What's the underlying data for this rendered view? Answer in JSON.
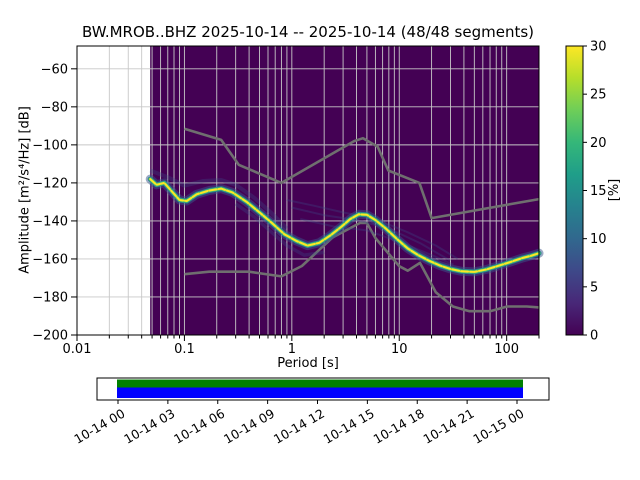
{
  "title": "BW.MROB..BHZ   2025-10-14 -- 2025-10-14  (48/48 segments)",
  "axes": {
    "ylabel": "Amplitude [m²/s⁴/Hz] [dB]",
    "xlabel": "Period [s]",
    "colorbar_label": "[%]"
  },
  "chart_data": {
    "type": "heatmap",
    "title": "BW.MROB..BHZ   2025-10-14 -- 2025-10-14  (48/48 segments)",
    "station": "BW.MROB..BHZ",
    "date_range": "2025-10-14 -- 2025-10-14",
    "segments": "48/48",
    "x_axis": {
      "label": "Period [s]",
      "scale": "log",
      "range": [
        0.01,
        200
      ],
      "ticks": [
        0.01,
        0.1,
        1,
        10,
        100
      ],
      "tick_labels": [
        "0.01",
        "0.1",
        "1",
        "10",
        "100"
      ]
    },
    "y_axis": {
      "label": "Amplitude [m²/s⁴/Hz] [dB]",
      "range": [
        -200,
        -48
      ],
      "ticks": [
        -60,
        -80,
        -100,
        -120,
        -140,
        -160,
        -180,
        -200
      ],
      "tick_labels": [
        "−60",
        "−80",
        "−100",
        "−120",
        "−140",
        "−160",
        "−180",
        "−200"
      ]
    },
    "colorbar": {
      "label": "[%]",
      "range": [
        0,
        30
      ],
      "ticks": [
        0,
        5,
        10,
        15,
        20,
        25,
        30
      ],
      "tick_labels": [
        "0",
        "5",
        "10",
        "15",
        "20",
        "25",
        "30"
      ],
      "colormap": "viridis",
      "gradient_bottom_to_top": [
        "#440154",
        "#482878",
        "#3e4989",
        "#31688e",
        "#26828e",
        "#1f9e89",
        "#35b779",
        "#6ece58",
        "#b5de2b",
        "#fde725"
      ]
    },
    "heatmap": {
      "period_start": 0.048,
      "background_color": "#440154",
      "grid_color": "#c8c8c8"
    },
    "psd_mode_curve": {
      "color": "#fde725",
      "points": [
        [
          0.048,
          -118
        ],
        [
          0.055,
          -121
        ],
        [
          0.065,
          -120
        ],
        [
          0.075,
          -124
        ],
        [
          0.09,
          -129
        ],
        [
          0.105,
          -129.5
        ],
        [
          0.13,
          -126
        ],
        [
          0.17,
          -124
        ],
        [
          0.22,
          -123
        ],
        [
          0.28,
          -125
        ],
        [
          0.38,
          -130
        ],
        [
          0.5,
          -135.5
        ],
        [
          0.65,
          -141
        ],
        [
          0.85,
          -147
        ],
        [
          1.1,
          -150.5
        ],
        [
          1.4,
          -153
        ],
        [
          1.8,
          -151.5
        ],
        [
          2.3,
          -147.5
        ],
        [
          2.9,
          -143
        ],
        [
          3.5,
          -139
        ],
        [
          4.2,
          -136.5
        ],
        [
          5.0,
          -136.8
        ],
        [
          6.0,
          -139.5
        ],
        [
          7.5,
          -144
        ],
        [
          9.5,
          -149.5
        ],
        [
          12,
          -154.5
        ],
        [
          15,
          -158
        ],
        [
          19,
          -161
        ],
        [
          24,
          -163.5
        ],
        [
          30,
          -165.3
        ],
        [
          38,
          -166.5
        ],
        [
          50,
          -166.8
        ],
        [
          65,
          -165.5
        ],
        [
          85,
          -163.5
        ],
        [
          110,
          -161.5
        ],
        [
          140,
          -159.5
        ],
        [
          170,
          -158.3
        ],
        [
          200,
          -157
        ]
      ]
    },
    "band_layers": [
      {
        "color": "#39568c",
        "width": 9,
        "opacity": 0.5,
        "dash": ""
      },
      {
        "color": "#25848e",
        "width": 5,
        "opacity": 0.95,
        "dash": ""
      },
      {
        "color": "#4ac16d",
        "width": 3.2,
        "opacity": 1,
        "dash": ""
      },
      {
        "color": "#fde725",
        "width": 2,
        "opacity": 1,
        "dash": "7 2"
      }
    ],
    "noise_models": {
      "color": "#6f6f6f",
      "nhnm": [
        [
          0.1,
          -91.5
        ],
        [
          0.22,
          -97.4
        ],
        [
          0.32,
          -110.5
        ],
        [
          0.8,
          -120.0
        ],
        [
          3.8,
          -98.0
        ],
        [
          4.6,
          -96.5
        ],
        [
          6.3,
          -101.0
        ],
        [
          7.9,
          -113.5
        ],
        [
          15.4,
          -120.0
        ],
        [
          20.0,
          -138.5
        ],
        [
          200,
          -128.5
        ]
      ],
      "nlnm": [
        [
          0.1,
          -168.0
        ],
        [
          0.17,
          -166.7
        ],
        [
          0.4,
          -166.7
        ],
        [
          0.8,
          -169.2
        ],
        [
          1.24,
          -163.7
        ],
        [
          2.4,
          -148.6
        ],
        [
          4.3,
          -141.1
        ],
        [
          5.0,
          -141.1
        ],
        [
          6.0,
          -149.0
        ],
        [
          10.0,
          -163.8
        ],
        [
          12.0,
          -166.2
        ],
        [
          15.6,
          -162.1
        ],
        [
          21.9,
          -177.5
        ],
        [
          31.6,
          -185.0
        ],
        [
          45.0,
          -187.5
        ],
        [
          70.0,
          -187.5
        ],
        [
          101.0,
          -185.0
        ],
        [
          154.0,
          -185.0
        ],
        [
          200.0,
          -185.5
        ]
      ]
    },
    "secondary_traces": {
      "color": "#3d4f8a",
      "opacity": 0.3,
      "paths": [
        {
          "width": 4,
          "points": [
            [
              0.048,
              -113.5
            ],
            [
              0.07,
              -117
            ],
            [
              0.1,
              -121.5
            ],
            [
              0.15,
              -119
            ],
            [
              0.22,
              -118.5
            ],
            [
              0.3,
              -121
            ],
            [
              0.45,
              -128
            ],
            [
              0.65,
              -136
            ],
            [
              0.9,
              -144
            ]
          ]
        },
        {
          "width": 3.5,
          "points": [
            [
              0.3,
              -131
            ],
            [
              0.45,
              -138
            ],
            [
              0.65,
              -146
            ],
            [
              0.9,
              -153
            ],
            [
              1.3,
              -158
            ],
            [
              2.0,
              -156.5
            ]
          ]
        },
        {
          "width": 2,
          "points": [
            [
              0.9,
              -129
            ],
            [
              1.6,
              -132
            ],
            [
              3,
              -135.5
            ],
            [
              6,
              -139
            ],
            [
              12,
              -146
            ],
            [
              22,
              -153
            ],
            [
              35,
              -160
            ]
          ]
        },
        {
          "width": 2,
          "points": [
            [
              1.0,
              -133
            ],
            [
              2,
              -137
            ],
            [
              4,
              -139.5
            ],
            [
              8,
              -144
            ],
            [
              16,
              -152
            ],
            [
              30,
              -161
            ]
          ]
        },
        {
          "width": 2,
          "points": [
            [
              1.2,
              -139
            ],
            [
              2.5,
              -143
            ],
            [
              5,
              -145
            ],
            [
              10,
              -151
            ],
            [
              20,
              -158
            ],
            [
              32,
              -163
            ]
          ]
        }
      ]
    }
  },
  "timeline": {
    "tick_labels": [
      "10-14 00",
      "10-14 03",
      "10-14 06",
      "10-14 09",
      "10-14 12",
      "10-14 15",
      "10-14 18",
      "10-14 21",
      "10-15 00"
    ],
    "coverage_color": "#008000",
    "data_color": "#0000ff"
  }
}
